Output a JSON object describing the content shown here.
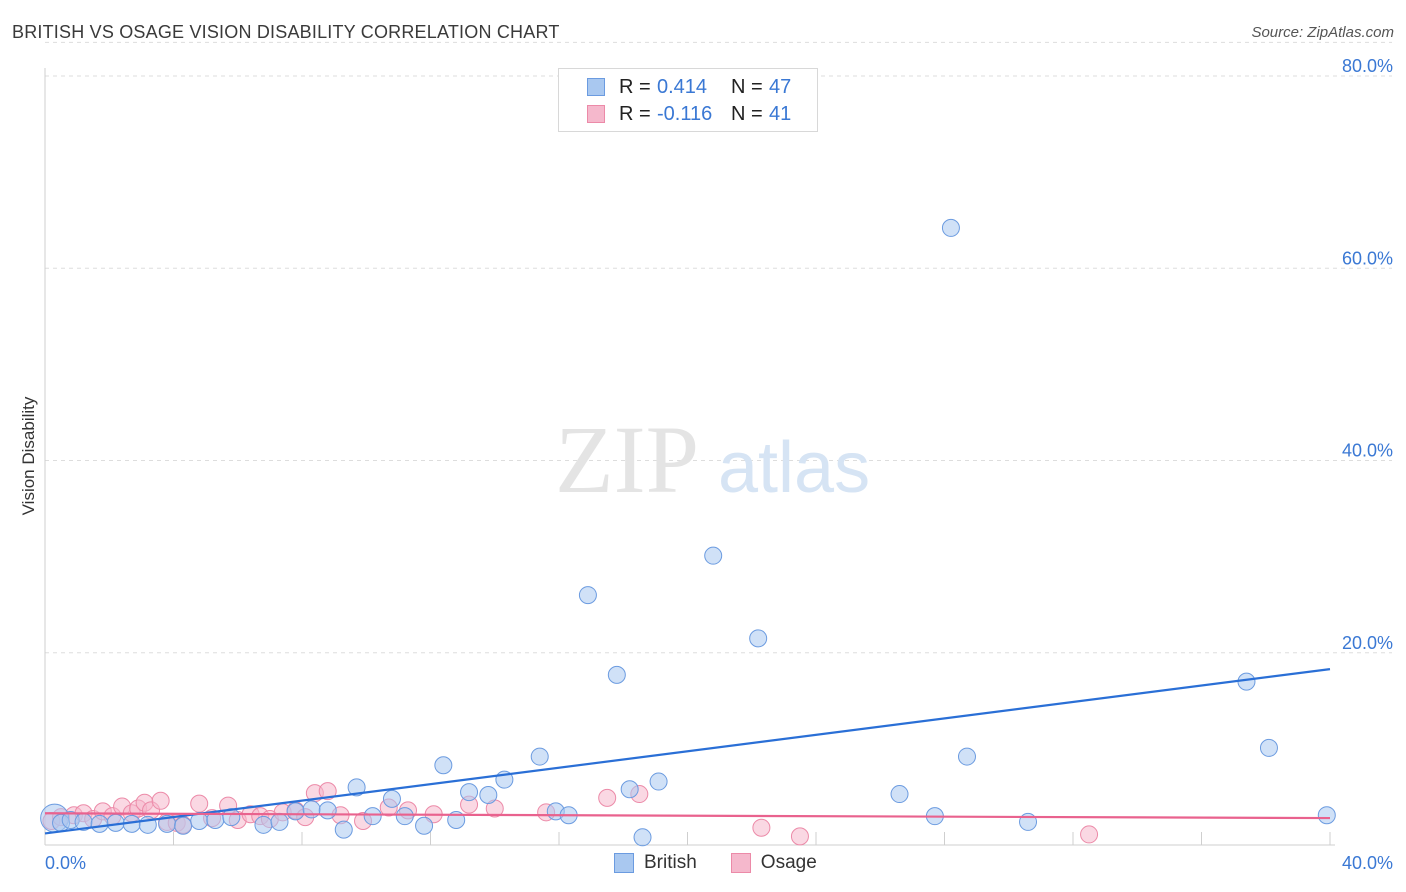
{
  "header": {
    "title": "BRITISH VS OSAGE VISION DISABILITY CORRELATION CHART",
    "source": "Source: ZipAtlas.com"
  },
  "watermark": {
    "zip": "ZIP",
    "atlas": "atlas"
  },
  "legend": {
    "rows": [
      {
        "r_label": "R =",
        "r_value": "0.414",
        "n_label": "N =",
        "n_value": "47"
      },
      {
        "r_label": "R =",
        "r_value": "-0.116",
        "n_label": "N =",
        "n_value": "41"
      }
    ],
    "bottom": [
      "British",
      "Osage"
    ]
  },
  "colors": {
    "british_fill": "#a9c8f0",
    "british_stroke": "#6b9be0",
    "british_line": "#2a6fd6",
    "osage_fill": "#f5b8cc",
    "osage_stroke": "#ec8aa8",
    "osage_line": "#e9628e",
    "tick_label": "#3a78d4",
    "grid": "#dddddd"
  },
  "chart_data": {
    "type": "scatter",
    "title": "BRITISH VS OSAGE VISION DISABILITY CORRELATION CHART",
    "xlabel": "",
    "ylabel": "Vision Disability",
    "xlim": [
      0,
      40
    ],
    "ylim": [
      0,
      85
    ],
    "x_tick_labels": [
      "0.0%",
      "40.0%"
    ],
    "y_ticks": [
      20,
      40,
      60,
      80
    ],
    "y_tick_labels": [
      "20.0%",
      "40.0%",
      "60.0%",
      "80.0%"
    ],
    "grid": true,
    "series": [
      {
        "name": "British",
        "r": 0.414,
        "n": 47,
        "trend": {
          "x": [
            0,
            40
          ],
          "y": [
            1.2,
            18.3
          ]
        },
        "points": [
          {
            "x": 0.3,
            "y": 2.8,
            "big": true
          },
          {
            "x": 0.5,
            "y": 2.3
          },
          {
            "x": 0.8,
            "y": 2.6
          },
          {
            "x": 1.2,
            "y": 2.4
          },
          {
            "x": 1.7,
            "y": 2.2
          },
          {
            "x": 2.2,
            "y": 2.3
          },
          {
            "x": 2.7,
            "y": 2.2
          },
          {
            "x": 3.2,
            "y": 2.1
          },
          {
            "x": 3.8,
            "y": 2.2
          },
          {
            "x": 4.3,
            "y": 2.0
          },
          {
            "x": 4.8,
            "y": 2.5
          },
          {
            "x": 5.3,
            "y": 2.6
          },
          {
            "x": 5.8,
            "y": 2.9
          },
          {
            "x": 6.8,
            "y": 2.1
          },
          {
            "x": 7.3,
            "y": 2.4
          },
          {
            "x": 7.8,
            "y": 3.5
          },
          {
            "x": 8.3,
            "y": 3.7
          },
          {
            "x": 8.8,
            "y": 3.6
          },
          {
            "x": 9.3,
            "y": 1.6
          },
          {
            "x": 9.7,
            "y": 6.0
          },
          {
            "x": 10.2,
            "y": 3.0
          },
          {
            "x": 10.8,
            "y": 4.8
          },
          {
            "x": 11.2,
            "y": 3.0
          },
          {
            "x": 11.8,
            "y": 2.0
          },
          {
            "x": 12.4,
            "y": 8.3
          },
          {
            "x": 12.8,
            "y": 2.6
          },
          {
            "x": 13.2,
            "y": 5.5
          },
          {
            "x": 13.8,
            "y": 5.2
          },
          {
            "x": 14.3,
            "y": 6.8
          },
          {
            "x": 15.4,
            "y": 9.2
          },
          {
            "x": 15.9,
            "y": 3.5
          },
          {
            "x": 16.3,
            "y": 3.1
          },
          {
            "x": 16.9,
            "y": 26.0
          },
          {
            "x": 17.8,
            "y": 17.7
          },
          {
            "x": 18.2,
            "y": 5.8
          },
          {
            "x": 18.6,
            "y": 0.8
          },
          {
            "x": 19.1,
            "y": 6.6
          },
          {
            "x": 20.8,
            "y": 30.1
          },
          {
            "x": 22.2,
            "y": 21.5
          },
          {
            "x": 26.6,
            "y": 5.3
          },
          {
            "x": 27.7,
            "y": 3.0
          },
          {
            "x": 28.2,
            "y": 64.2
          },
          {
            "x": 28.7,
            "y": 9.2
          },
          {
            "x": 30.6,
            "y": 2.4
          },
          {
            "x": 37.4,
            "y": 17.0
          },
          {
            "x": 38.1,
            "y": 10.1
          },
          {
            "x": 39.9,
            "y": 3.1
          }
        ]
      },
      {
        "name": "Osage",
        "r": -0.116,
        "n": 41,
        "trend": {
          "x": [
            0,
            40
          ],
          "y": [
            3.3,
            2.8
          ]
        },
        "points": [
          {
            "x": 0.2,
            "y": 2.5
          },
          {
            "x": 0.5,
            "y": 2.9
          },
          {
            "x": 0.9,
            "y": 3.1
          },
          {
            "x": 1.2,
            "y": 3.3
          },
          {
            "x": 1.5,
            "y": 2.7
          },
          {
            "x": 1.8,
            "y": 3.5
          },
          {
            "x": 2.1,
            "y": 3.0
          },
          {
            "x": 2.4,
            "y": 4.0
          },
          {
            "x": 2.7,
            "y": 3.3
          },
          {
            "x": 2.9,
            "y": 3.8
          },
          {
            "x": 3.1,
            "y": 4.4
          },
          {
            "x": 3.3,
            "y": 3.6
          },
          {
            "x": 3.6,
            "y": 4.6
          },
          {
            "x": 3.8,
            "y": 2.4
          },
          {
            "x": 4.1,
            "y": 2.3
          },
          {
            "x": 4.3,
            "y": 2.1
          },
          {
            "x": 4.8,
            "y": 4.3
          },
          {
            "x": 5.2,
            "y": 2.8
          },
          {
            "x": 5.7,
            "y": 4.1
          },
          {
            "x": 6.0,
            "y": 2.6
          },
          {
            "x": 6.4,
            "y": 3.2
          },
          {
            "x": 6.7,
            "y": 3.0
          },
          {
            "x": 7.0,
            "y": 2.7
          },
          {
            "x": 7.4,
            "y": 3.4
          },
          {
            "x": 7.8,
            "y": 3.6
          },
          {
            "x": 8.1,
            "y": 2.9
          },
          {
            "x": 8.4,
            "y": 5.4
          },
          {
            "x": 8.8,
            "y": 5.6
          },
          {
            "x": 9.2,
            "y": 3.1
          },
          {
            "x": 9.9,
            "y": 2.5
          },
          {
            "x": 10.7,
            "y": 3.9
          },
          {
            "x": 11.3,
            "y": 3.6
          },
          {
            "x": 12.1,
            "y": 3.2
          },
          {
            "x": 13.2,
            "y": 4.2
          },
          {
            "x": 14.0,
            "y": 3.8
          },
          {
            "x": 15.6,
            "y": 3.4
          },
          {
            "x": 17.5,
            "y": 4.9
          },
          {
            "x": 18.5,
            "y": 5.3
          },
          {
            "x": 22.3,
            "y": 1.8
          },
          {
            "x": 23.5,
            "y": 0.9
          },
          {
            "x": 32.5,
            "y": 1.1
          }
        ]
      }
    ]
  }
}
